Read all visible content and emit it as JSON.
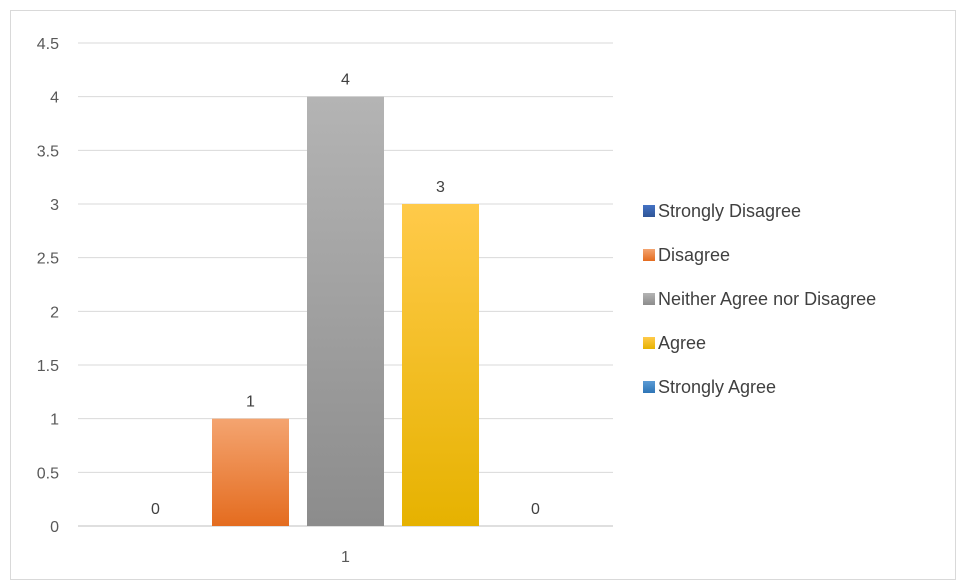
{
  "chart_data": {
    "type": "bar",
    "categories": [
      "1"
    ],
    "series": [
      {
        "name": "Strongly Disagree",
        "values": [
          0
        ],
        "color": "#4472C4",
        "color_dark": "#2F5597"
      },
      {
        "name": "Disagree",
        "values": [
          1
        ],
        "color": "#F4A470",
        "color_dark": "#E46C1F"
      },
      {
        "name": "Neither Agree nor Disagree",
        "values": [
          4
        ],
        "color": "#B4B4B4",
        "color_dark": "#8C8C8C"
      },
      {
        "name": "Agree",
        "values": [
          3
        ],
        "color": "#FFCA4A",
        "color_dark": "#E6B200"
      },
      {
        "name": "Strongly Agree",
        "values": [
          0
        ],
        "color": "#5B9BD5",
        "color_dark": "#2E75B6"
      }
    ],
    "ylim": [
      0,
      4.5
    ],
    "yticks": [
      "0",
      "0.5",
      "1",
      "1.5",
      "2",
      "2.5",
      "3",
      "3.5",
      "4",
      "4.5"
    ],
    "grid": true,
    "legend_position": "right",
    "title": "",
    "xlabel": "",
    "ylabel": ""
  }
}
